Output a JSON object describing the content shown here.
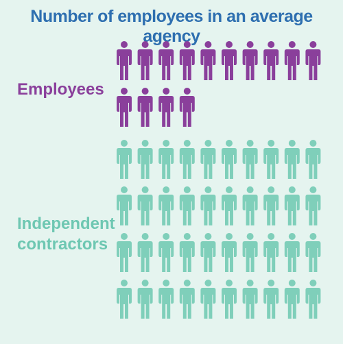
{
  "chart_data": {
    "type": "pictogram",
    "title": "Number of employees in an average agency",
    "series": [
      {
        "name": "Employees",
        "value": 14,
        "color": "#8a3f9b"
      },
      {
        "name": "Independent contractors",
        "value": 40,
        "color": "#7fcfba"
      }
    ],
    "label_lines": {
      "employees": [
        "Employees"
      ],
      "contractors": [
        "Independent",
        "contractors"
      ]
    },
    "icons_per_row": 10
  }
}
